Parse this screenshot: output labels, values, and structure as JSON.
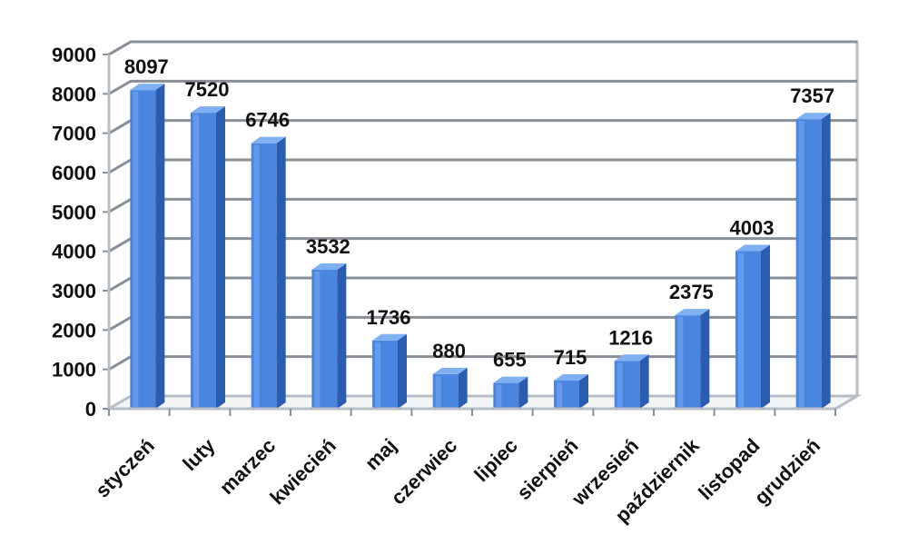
{
  "chart_data": {
    "type": "bar",
    "style": "3d-column",
    "categories": [
      "styczeń",
      "luty",
      "marzec",
      "kwiecień",
      "maj",
      "czerwiec",
      "lipiec",
      "sierpień",
      "wrzesień",
      "październik",
      "listopad",
      "grudzień"
    ],
    "values": [
      8097,
      7520,
      6746,
      3532,
      1736,
      880,
      655,
      715,
      1216,
      2375,
      4003,
      7357
    ],
    "yticks": [
      0,
      1000,
      2000,
      3000,
      4000,
      5000,
      6000,
      7000,
      8000,
      9000
    ],
    "ylim": [
      0,
      9000
    ],
    "title": "",
    "xlabel": "",
    "ylabel": "",
    "grid": true,
    "legend": "none",
    "bar_color": "#4a86e0",
    "bar_side_color": "#2a5cb0",
    "bar_top_color": "#7fb0f2",
    "grid_color": "#8a8f96",
    "wall_color": "#b8bec6"
  }
}
